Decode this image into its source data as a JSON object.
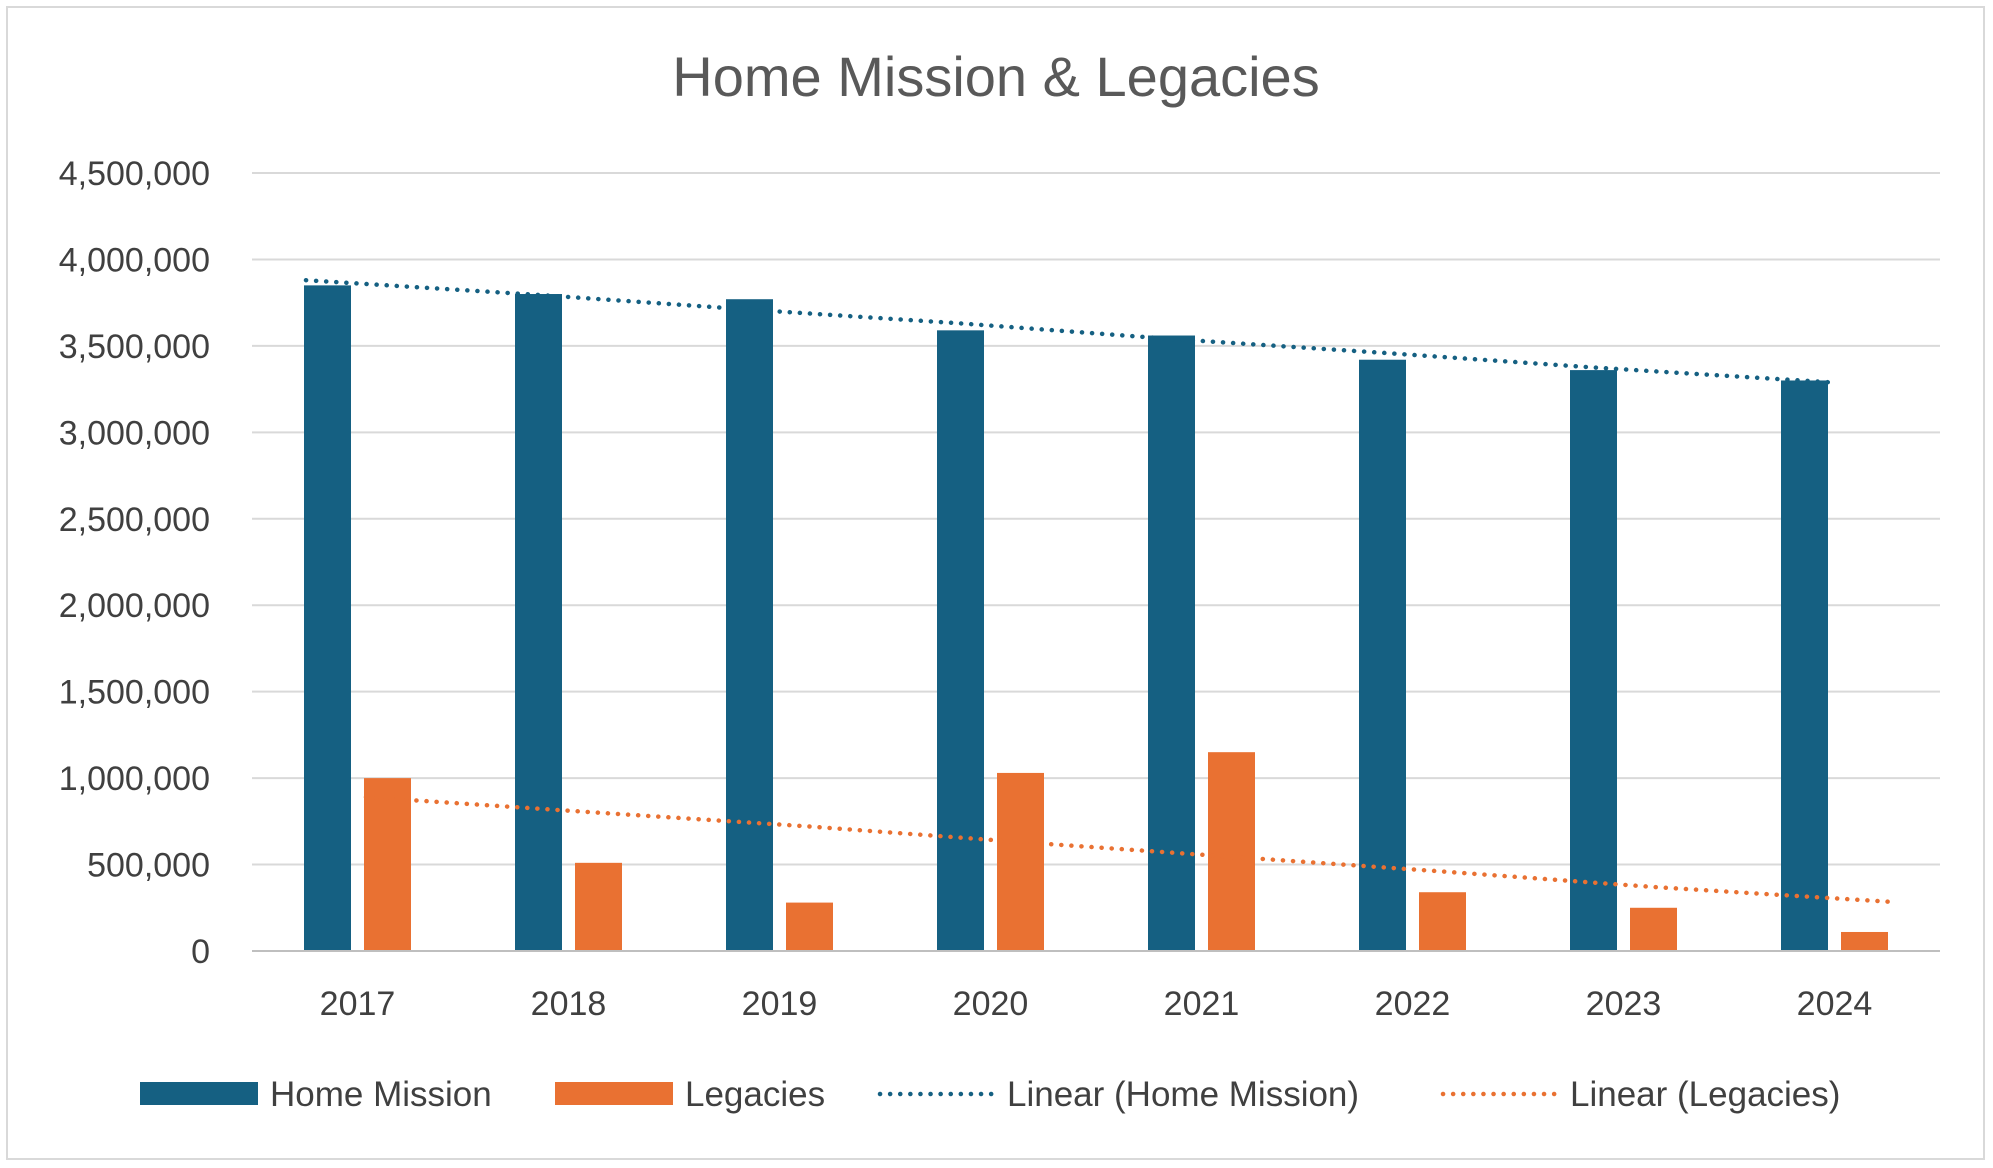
{
  "chart_data": {
    "type": "bar",
    "title": "Home Mission & Legacies",
    "xlabel": "",
    "ylabel": "",
    "categories": [
      "2017",
      "2018",
      "2019",
      "2020",
      "2021",
      "2022",
      "2023",
      "2024"
    ],
    "series": [
      {
        "name": "Home Mission",
        "color": "#156082",
        "values": [
          3850000,
          3800000,
          3770000,
          3590000,
          3560000,
          3420000,
          3360000,
          3300000
        ]
      },
      {
        "name": "Legacies",
        "color": "#E97132",
        "values": [
          1000000,
          510000,
          280000,
          1030000,
          1150000,
          340000,
          250000,
          110000
        ]
      }
    ],
    "trendlines": [
      {
        "name": "Linear (Home Mission)",
        "series": "Home Mission",
        "type": "linear",
        "color": "#156082",
        "values": [
          3880000,
          3795000,
          3710000,
          3630000,
          3540000,
          3460000,
          3375000,
          3290000
        ]
      },
      {
        "name": "Linear (Legacies)",
        "series": "Legacies",
        "type": "linear",
        "color": "#E97132",
        "values": [
          890000,
          800000,
          720000,
          630000,
          545000,
          460000,
          370000,
          285000
        ]
      }
    ],
    "yticks": [
      "0",
      "500,000",
      "1,000,000",
      "1,500,000",
      "2,000,000",
      "2,500,000",
      "3,000,000",
      "3,500,000",
      "4,000,000",
      "4,500,000"
    ],
    "ylim": [
      0,
      4500000
    ],
    "ytick_step": 500000,
    "grid": true,
    "legend_position": "bottom"
  }
}
